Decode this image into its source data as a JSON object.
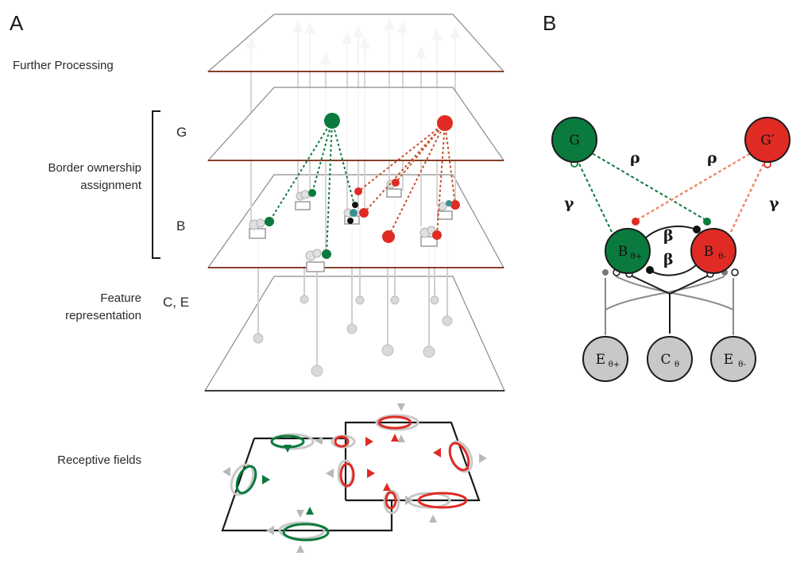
{
  "panel_a": {
    "label": "A",
    "layers": {
      "further_processing": "Further Processing",
      "border_ownership_line1": "Border ownership",
      "border_ownership_line2": "assignment",
      "feature_line1": "Feature",
      "feature_line2": "representation",
      "receptive_fields": "Receptive fields"
    },
    "level_tags": {
      "g": "G",
      "b": "B",
      "ce": "C, E"
    }
  },
  "panel_b": {
    "label": "B",
    "nodes": {
      "g": "G",
      "g_prime": "G′",
      "b_plus": {
        "main": "B",
        "sub": "θ+"
      },
      "b_minus": {
        "main": "B",
        "sub": "θ-"
      },
      "e_plus": {
        "main": "E",
        "sub": "θ+"
      },
      "c": {
        "main": "C",
        "sub": "θ"
      },
      "e_minus": {
        "main": "E",
        "sub": "θ-"
      }
    },
    "weights": {
      "rho_left": "ρ",
      "rho_right": "ρ",
      "gamma_left": "γ",
      "gamma_right": "γ",
      "beta_top": "β",
      "beta_bottom": "β"
    }
  },
  "colors": {
    "green": "#0a7a3e",
    "red": "#e02b25",
    "gray": "#c8c8c8",
    "dark": "#1a1a1a",
    "brown_edge": "#7a2a10"
  }
}
